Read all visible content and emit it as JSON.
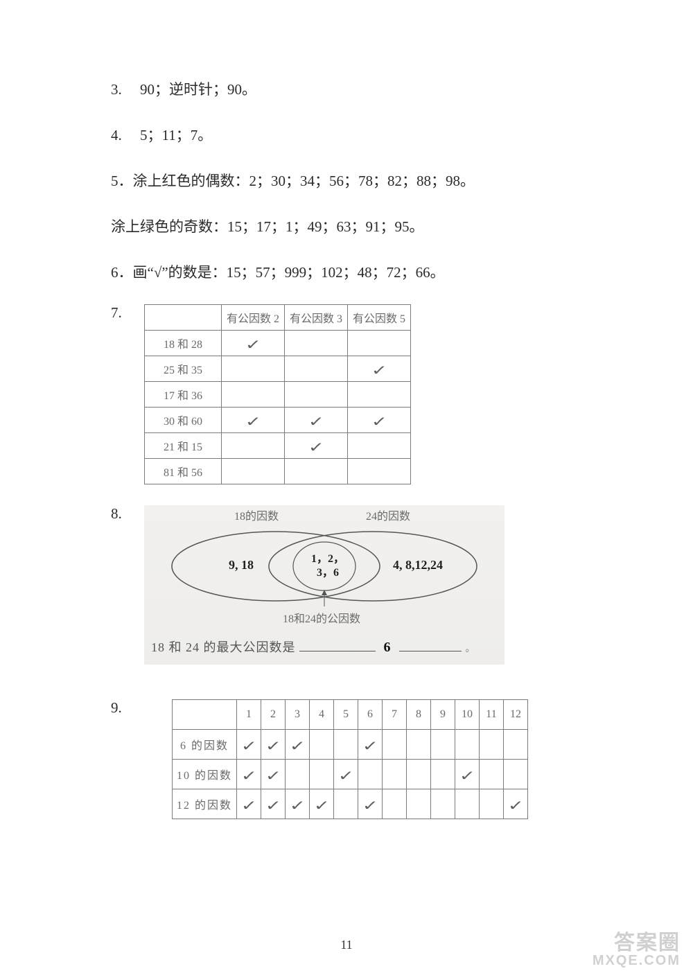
{
  "q3": {
    "num": "3.",
    "text": "　90；逆时针；90。"
  },
  "q4": {
    "num": "4.",
    "text": "　5；11；7。"
  },
  "q5a": "5．涂上红色的偶数：2；30；34；56；78；82；88；98。",
  "q5b": "涂上绿色的奇数：15；17；1；49；63；91；95。",
  "q6": "6．画“√”的数是：15；57；999；102；48；72；66。",
  "q7": {
    "num": "7.",
    "headers": [
      "",
      "有公因数 2",
      "有公因数 3",
      "有公因数 5"
    ],
    "rows": [
      {
        "label": "18 和 28",
        "c2": true,
        "c3": false,
        "c5": false
      },
      {
        "label": "25 和 35",
        "c2": false,
        "c3": false,
        "c5": true
      },
      {
        "label": "17 和 36",
        "c2": false,
        "c3": false,
        "c5": false
      },
      {
        "label": "30 和 60",
        "c2": true,
        "c3": true,
        "c5": true
      },
      {
        "label": "21 和 15",
        "c2": false,
        "c3": true,
        "c5": false
      },
      {
        "label": "81 和 56",
        "c2": false,
        "c3": false,
        "c5": false
      }
    ]
  },
  "q8": {
    "num": "8.",
    "left_title": "18的因数",
    "right_title": "24的因数",
    "left_only": "9, 18",
    "intersection_line1": "1，2，",
    "intersection_line2": "3，6",
    "right_only": "4, 8,12,24",
    "bottom_label": "18和24的公因数",
    "answer_prefix": "18 和 24 的最大公因数是",
    "answer_value": "6",
    "ellipse_stroke": "#555555",
    "bg_color": "#eeedea"
  },
  "q9": {
    "num": "9.",
    "cols": [
      "1",
      "2",
      "3",
      "4",
      "5",
      "6",
      "7",
      "8",
      "9",
      "10",
      "11",
      "12"
    ],
    "rows": [
      {
        "label": "6 的因数",
        "marks": [
          1,
          2,
          3,
          6
        ]
      },
      {
        "label": "10 的因数",
        "marks": [
          1,
          2,
          5,
          10
        ]
      },
      {
        "label": "12 的因数",
        "marks": [
          1,
          2,
          3,
          4,
          6,
          12
        ]
      }
    ]
  },
  "page_number": "11",
  "watermark": {
    "line1": "答案圈",
    "line2": "MXQE.COM"
  },
  "check_glyph": "✓"
}
